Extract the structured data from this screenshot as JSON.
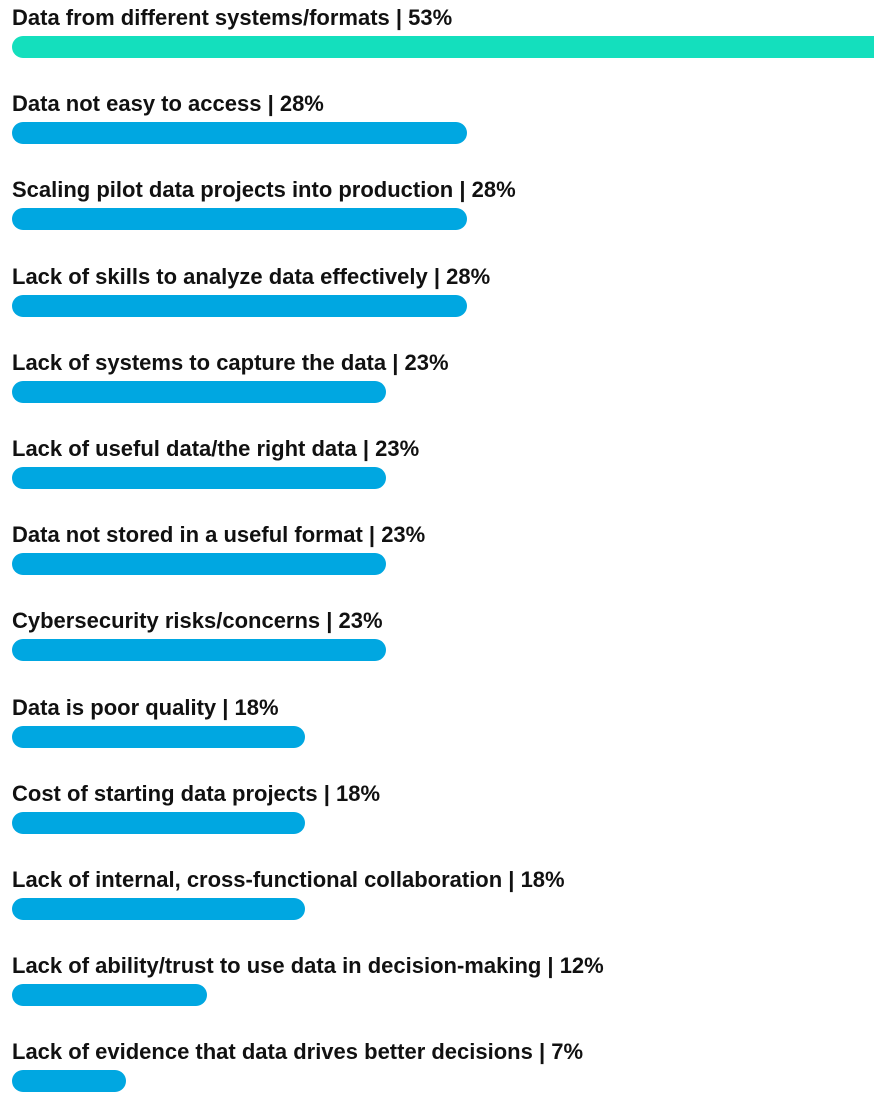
{
  "chart_data": {
    "type": "bar",
    "orientation": "horizontal",
    "categories": [
      "Data from different systems/formats",
      "Data not easy to access",
      "Scaling pilot data projects into production",
      "Lack of skills to analyze data effectively",
      "Lack of systems to capture the data",
      "Lack of useful data/the right data",
      "Data not stored in a useful format",
      "Cybersecurity risks/concerns",
      "Data is poor quality",
      "Cost of starting data projects",
      "Lack of internal, cross-functional collaboration",
      "Lack of ability/trust to use data in decision-making",
      "Lack of evidence that data drives better decisions"
    ],
    "values": [
      53,
      28,
      28,
      28,
      23,
      23,
      23,
      23,
      18,
      18,
      18,
      12,
      7
    ],
    "value_labels": [
      "53%",
      "28%",
      "28%",
      "28%",
      "23%",
      "23%",
      "23%",
      "23%",
      "18%",
      "18%",
      "18%",
      "12%",
      "7%"
    ],
    "separator": " | ",
    "unit": "%",
    "title": "",
    "xlabel": "",
    "ylabel": "",
    "xlim": [
      0,
      53
    ],
    "grid": false,
    "legend": "none",
    "colors": {
      "highlight": "#14dfbd",
      "default": "#00a7e1",
      "text": "#111111"
    }
  }
}
